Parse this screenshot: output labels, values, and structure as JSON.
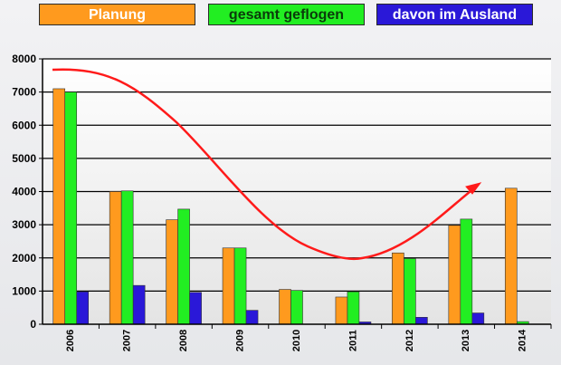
{
  "chart_data": {
    "type": "bar",
    "title": "",
    "xlabel": "",
    "ylabel": "",
    "ylim": [
      0,
      8000
    ],
    "yticks": [
      0,
      1000,
      2000,
      3000,
      4000,
      5000,
      6000,
      7000,
      8000
    ],
    "grid": true,
    "legend_position": "top",
    "categories": [
      "2006",
      "2007",
      "2008",
      "2009",
      "2010",
      "2011",
      "2012",
      "2013",
      "2014"
    ],
    "series": [
      {
        "name": "Planung",
        "color": "#ff9a1e",
        "values": [
          7100,
          4000,
          3150,
          2300,
          1050,
          820,
          2150,
          2980,
          4100
        ]
      },
      {
        "name": "gesamt geflogen",
        "color": "#22ee22",
        "values": [
          7000,
          4020,
          3470,
          2300,
          1020,
          980,
          1980,
          3170,
          80
        ]
      },
      {
        "name": "davon im Ausland",
        "color": "#2a18d8",
        "values": [
          980,
          1170,
          960,
          420,
          null,
          70,
          210,
          340,
          null
        ]
      }
    ],
    "annotation": {
      "type": "trend-curve-arrow",
      "color": "#ff1a1a"
    }
  }
}
